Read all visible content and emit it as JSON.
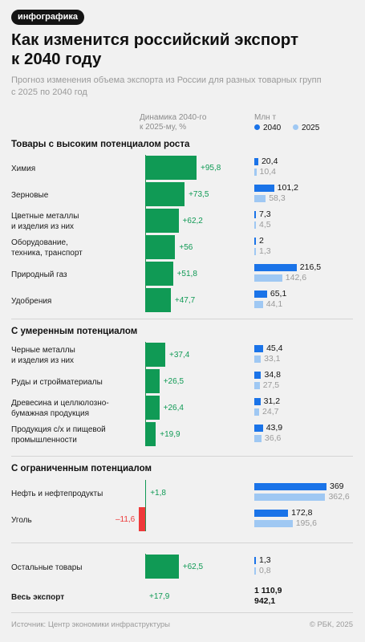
{
  "tag": "инфографика",
  "title_lines": [
    "Как изменится российский экспорт",
    "к 2040 году"
  ],
  "subtitle_lines": [
    "Прогноз изменения объема экспорта из России для разных товарных групп",
    "с 2025 по 2040 год"
  ],
  "col_growth_header": [
    "Динамика 2040-го",
    "к 2025-му, %"
  ],
  "col_volume_header": "Млн т",
  "legend": [
    {
      "label": "2040",
      "color": "#1a73e8"
    },
    {
      "label": "2025",
      "color": "#9fc8f3"
    }
  ],
  "colors": {
    "growth_positive": "#109a55",
    "growth_negative": "#ee3a3a",
    "growth_label_positive": "#109a55",
    "growth_label_negative": "#ee3a3a",
    "bar_2040": "#1a73e8",
    "bar_2025": "#9fc8f3"
  },
  "chart_data": {
    "type": "bar",
    "growth_unit": "%",
    "volume_unit": "Млн т",
    "series": [
      {
        "name": "2040"
      },
      {
        "name": "2025"
      }
    ],
    "groups": [
      {
        "title": "Товары с высоким потенциалом роста",
        "rows": [
          {
            "label": [
              "Химия"
            ],
            "growth": "+95,8",
            "growth_value": 95.8,
            "v2040": "20,4",
            "v2040_value": 20.4,
            "v2025": "10,4",
            "v2025_value": 10.4
          },
          {
            "label": [
              "Зерновые"
            ],
            "growth": "+73,5",
            "growth_value": 73.5,
            "v2040": "101,2",
            "v2040_value": 101.2,
            "v2025": "58,3",
            "v2025_value": 58.3
          },
          {
            "label": [
              "Цветные металлы",
              "и изделия из них"
            ],
            "growth": "+62,2",
            "growth_value": 62.2,
            "v2040": "7,3",
            "v2040_value": 7.3,
            "v2025": "4,5",
            "v2025_value": 4.5
          },
          {
            "label": [
              "Оборудование,",
              "техника, транспорт"
            ],
            "growth": "+56",
            "growth_value": 56,
            "v2040": "2",
            "v2040_value": 2,
            "v2025": "1,3",
            "v2025_value": 1.3
          },
          {
            "label": [
              "Природный газ"
            ],
            "growth": "+51,8",
            "growth_value": 51.8,
            "v2040": "216,5",
            "v2040_value": 216.5,
            "v2025": "142,6",
            "v2025_value": 142.6
          },
          {
            "label": [
              "Удобрения"
            ],
            "growth": "+47,7",
            "growth_value": 47.7,
            "v2040": "65,1",
            "v2040_value": 65.1,
            "v2025": "44,1",
            "v2025_value": 44.1
          }
        ]
      },
      {
        "title": "С умеренным потенциалом",
        "rows": [
          {
            "label": [
              "Черные металлы",
              "и изделия из них"
            ],
            "growth": "+37,4",
            "growth_value": 37.4,
            "v2040": "45,4",
            "v2040_value": 45.4,
            "v2025": "33,1",
            "v2025_value": 33.1
          },
          {
            "label": [
              "Руды и стройматериалы"
            ],
            "growth": "+26,5",
            "growth_value": 26.5,
            "v2040": "34,8",
            "v2040_value": 34.8,
            "v2025": "27,5",
            "v2025_value": 27.5
          },
          {
            "label": [
              "Древесина и целлюлозно-",
              "бумажная продукция"
            ],
            "growth": "+26,4",
            "growth_value": 26.4,
            "v2040": "31,2",
            "v2040_value": 31.2,
            "v2025": "24,7",
            "v2025_value": 24.7
          },
          {
            "label": [
              "Продукция с/х и пищевой",
              "промышленности"
            ],
            "growth": "+19,9",
            "growth_value": 19.9,
            "v2040": "43,9",
            "v2040_value": 43.9,
            "v2025": "36,6",
            "v2025_value": 36.6
          }
        ]
      },
      {
        "title": "С ограниченным потенциалом",
        "rows": [
          {
            "label": [
              "Нефть и нефтепродукты"
            ],
            "growth": "+1,8",
            "growth_value": 1.8,
            "v2040": "369",
            "v2040_value": 369,
            "v2025": "362,6",
            "v2025_value": 362.6
          },
          {
            "label": [
              "Уголь"
            ],
            "growth": "–11,6",
            "growth_value": -11.6,
            "v2040": "172,8",
            "v2040_value": 172.8,
            "v2025": "195,6",
            "v2025_value": 195.6
          }
        ]
      },
      {
        "title": "",
        "rows": [
          {
            "label": [
              "Остальные товары"
            ],
            "growth": "+62,5",
            "growth_value": 62.5,
            "v2040": "1,3",
            "v2040_value": 1.3,
            "v2025": "0,8",
            "v2025_value": 0.8
          }
        ]
      }
    ],
    "total": {
      "label": [
        "Весь экспорт"
      ],
      "growth": "+17,9",
      "growth_value": 17.9,
      "v2040": "1 110,9",
      "v2040_value": 1110.9,
      "v2025": "942,1",
      "v2025_value": 942.1
    }
  },
  "footer": {
    "source": "Источник: Центр экономики инфраструктуры",
    "copyright": "© РБК, 2025"
  }
}
